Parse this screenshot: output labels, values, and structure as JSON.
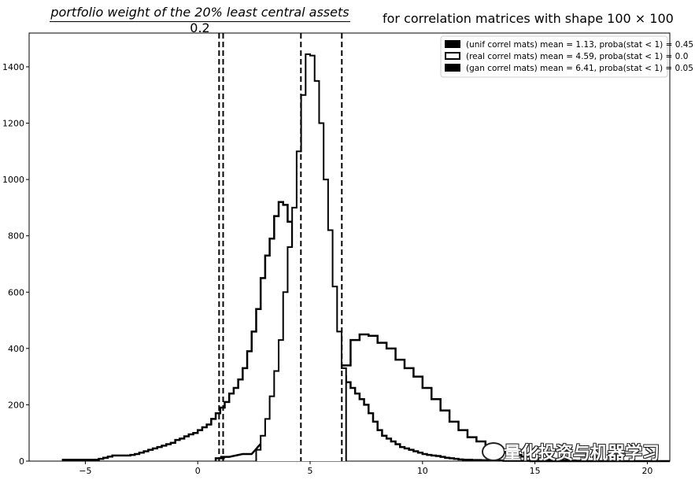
{
  "title": {
    "main": "portfolio weight of the 20% least central assets",
    "sub": "0.2",
    "right": "for correlation matrices with shape 100 × 100"
  },
  "watermark": "量化投资与机器学习",
  "chart_data": {
    "type": "step-histogram",
    "xlim": [
      -7.5,
      21
    ],
    "ylim": [
      0,
      1520
    ],
    "xticks": [
      -5,
      0,
      5,
      10,
      15,
      20
    ],
    "yticks": [
      0,
      200,
      400,
      600,
      800,
      1000,
      1200,
      1400
    ],
    "legend_position": "upper right",
    "series": [
      {
        "name": "(unif correl mats) mean = 1.13, proba(stat < 1) = 0.45",
        "mean": 1.13,
        "color": "#000000",
        "bin_edges_range": [
          -6,
          21
        ],
        "bin_width": 0.2,
        "approx_counts": [
          5,
          5,
          5,
          5,
          5,
          5,
          5,
          5,
          8,
          12,
          16,
          20,
          20,
          20,
          20,
          22,
          25,
          30,
          35,
          40,
          45,
          50,
          55,
          60,
          65,
          75,
          80,
          88,
          95,
          100,
          110,
          120,
          130,
          150,
          170,
          190,
          210,
          240,
          260,
          290,
          330,
          390,
          460,
          540,
          650,
          730,
          790,
          870,
          920,
          910,
          850,
          760,
          680,
          600,
          540,
          500,
          460,
          430,
          400,
          370,
          340,
          320,
          300,
          280,
          260,
          240,
          220,
          200,
          170,
          140,
          110,
          90,
          80,
          70,
          60,
          50,
          45,
          40,
          35,
          30,
          25,
          22,
          20,
          18,
          15,
          12,
          10,
          8,
          6,
          5,
          5,
          4,
          4,
          3,
          3,
          2,
          2,
          2,
          1,
          1,
          1,
          1,
          1,
          1,
          0,
          0,
          0,
          0,
          0,
          0,
          0,
          0,
          0,
          0,
          0,
          0,
          0,
          0,
          0,
          0,
          0,
          0,
          0,
          0,
          0,
          0,
          0,
          0,
          0,
          0,
          0,
          0,
          0,
          0,
          0
        ]
      },
      {
        "name": "(real correl mats) mean = 4.59, proba(stat < 1) = 0.0",
        "mean": 4.59,
        "color": "#000000",
        "approx_counts": [
          0,
          0,
          0,
          0,
          0,
          0,
          0,
          0,
          0,
          0,
          0,
          0,
          0,
          0,
          0,
          0,
          0,
          0,
          0,
          0,
          0,
          0,
          0,
          0,
          0,
          0,
          0,
          0,
          0,
          0,
          0,
          0,
          0,
          0,
          0,
          0,
          0,
          0,
          0,
          0,
          0,
          0,
          0,
          0,
          0,
          0,
          0,
          0,
          0,
          0,
          0,
          0,
          0,
          0,
          0,
          0,
          0,
          0,
          0,
          0,
          0,
          0,
          0,
          0,
          0,
          0,
          0,
          0,
          0,
          0,
          0,
          0,
          0,
          0,
          0,
          0,
          0,
          0,
          0,
          0,
          0,
          0,
          0,
          0,
          0,
          0,
          0,
          0,
          0,
          0,
          0,
          0,
          0,
          0,
          0,
          0,
          0,
          0,
          0,
          0,
          0,
          0,
          0,
          0,
          0,
          0,
          0,
          0,
          0,
          0,
          0,
          0,
          0,
          0,
          0,
          0,
          0,
          0,
          0,
          0,
          0,
          0,
          0,
          0,
          0,
          0,
          0,
          0,
          0,
          0,
          0,
          0,
          0,
          0,
          0
        ],
        "peak_profile": [
          [
            2.6,
            40
          ],
          [
            2.8,
            90
          ],
          [
            3.0,
            150
          ],
          [
            3.2,
            230
          ],
          [
            3.4,
            320
          ],
          [
            3.6,
            430
          ],
          [
            3.8,
            600
          ],
          [
            4.0,
            760
          ],
          [
            4.2,
            900
          ],
          [
            4.4,
            1100
          ],
          [
            4.6,
            1300
          ],
          [
            4.8,
            1445
          ],
          [
            5.0,
            1440
          ],
          [
            5.2,
            1350
          ],
          [
            5.4,
            1200
          ],
          [
            5.6,
            1000
          ],
          [
            5.8,
            820
          ],
          [
            6.0,
            620
          ],
          [
            6.2,
            460
          ],
          [
            6.4,
            330
          ]
        ]
      },
      {
        "name": "(gan correl mats) mean = 6.41, proba(stat < 1) = 0.05",
        "mean": 6.41,
        "color": "#000000",
        "profile": [
          [
            0.8,
            10
          ],
          [
            1.0,
            15
          ],
          [
            2.0,
            25
          ],
          [
            3.0,
            80
          ],
          [
            3.6,
            120
          ],
          [
            4.0,
            170
          ],
          [
            4.4,
            200
          ],
          [
            4.8,
            220
          ],
          [
            5.2,
            250
          ],
          [
            5.6,
            290
          ],
          [
            6.0,
            320
          ],
          [
            6.4,
            340
          ],
          [
            6.8,
            430
          ],
          [
            7.2,
            450
          ],
          [
            7.6,
            445
          ],
          [
            8.0,
            420
          ],
          [
            8.4,
            400
          ],
          [
            8.8,
            360
          ],
          [
            9.2,
            330
          ],
          [
            9.6,
            300
          ],
          [
            10.0,
            260
          ],
          [
            10.4,
            220
          ],
          [
            10.8,
            180
          ],
          [
            11.2,
            140
          ],
          [
            11.6,
            110
          ],
          [
            12.0,
            85
          ],
          [
            12.4,
            70
          ],
          [
            12.8,
            55
          ],
          [
            13.2,
            40
          ],
          [
            13.6,
            30
          ],
          [
            14.0,
            22
          ],
          [
            14.4,
            16
          ],
          [
            14.8,
            10
          ],
          [
            15.2,
            8
          ],
          [
            15.6,
            5
          ],
          [
            16.0,
            3
          ],
          [
            16.4,
            2
          ],
          [
            16.8,
            1
          ]
        ]
      }
    ],
    "mean_lines": [
      0.95,
      1.13,
      4.59,
      6.41
    ]
  }
}
